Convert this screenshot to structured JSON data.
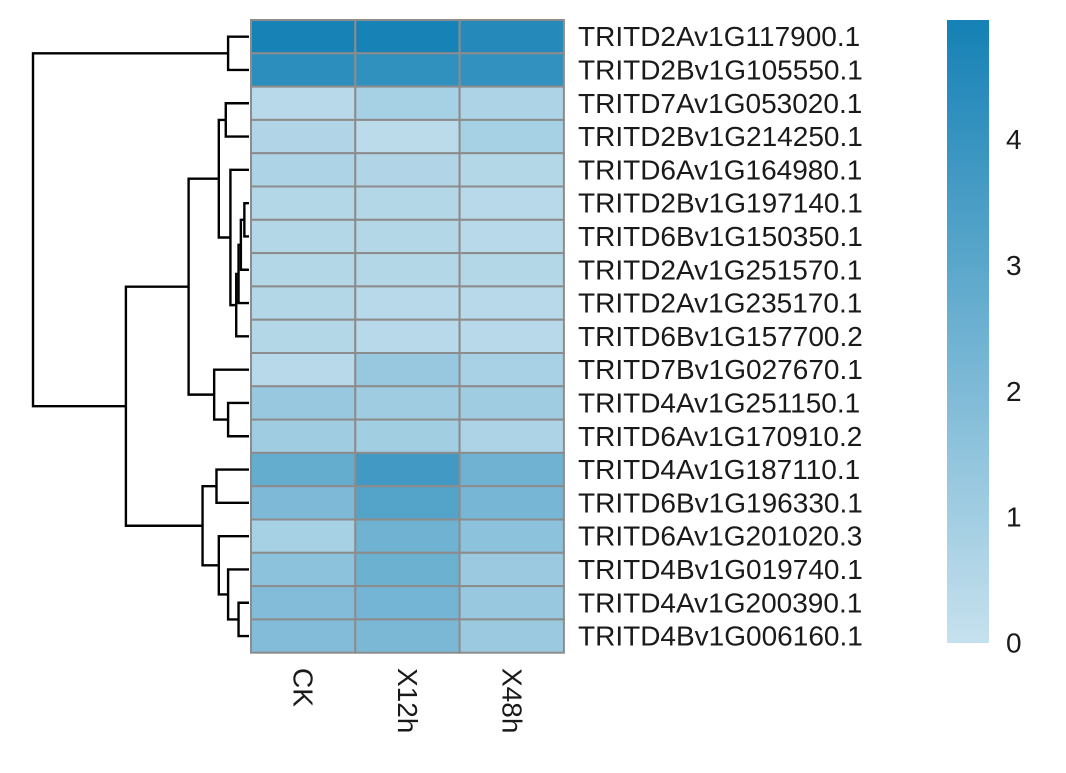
{
  "chart_data": {
    "type": "heatmap",
    "columns": [
      "CK",
      "X12h",
      "X48h"
    ],
    "rows": [
      "TRITD2Av1G117900.1",
      "TRITD2Bv1G105550.1",
      "TRITD7Av1G053020.1",
      "TRITD2Bv1G214250.1",
      "TRITD6Av1G164980.1",
      "TRITD2Bv1G197140.1",
      "TRITD6Bv1G150350.1",
      "TRITD2Av1G251570.1",
      "TRITD2Av1G235170.1",
      "TRITD6Bv1G157700.2",
      "TRITD7Bv1G027670.1",
      "TRITD4Av1G251150.1",
      "TRITD6Av1G170910.2",
      "TRITD4Av1G187110.1",
      "TRITD6Bv1G196330.1",
      "TRITD6Av1G201020.3",
      "TRITD4Bv1G019740.1",
      "TRITD4Av1G200390.1",
      "TRITD4Bv1G006160.1"
    ],
    "values": [
      [
        4.9,
        4.9,
        4.5
      ],
      [
        4.3,
        4.2,
        4.1
      ],
      [
        0.4,
        0.9,
        0.7
      ],
      [
        0.6,
        0.3,
        0.9
      ],
      [
        0.7,
        0.6,
        0.5
      ],
      [
        0.5,
        0.5,
        0.4
      ],
      [
        0.5,
        0.5,
        0.4
      ],
      [
        0.5,
        0.5,
        0.5
      ],
      [
        0.5,
        0.4,
        0.4
      ],
      [
        0.5,
        0.4,
        0.4
      ],
      [
        0.4,
        1.3,
        0.8
      ],
      [
        1.3,
        1.1,
        1.1
      ],
      [
        1.1,
        1.0,
        0.7
      ],
      [
        2.7,
        3.7,
        2.4
      ],
      [
        2.0,
        3.2,
        2.2
      ],
      [
        0.9,
        2.4,
        1.6
      ],
      [
        1.6,
        2.5,
        1.2
      ],
      [
        1.9,
        2.3,
        1.3
      ],
      [
        1.9,
        2.1,
        1.2
      ]
    ],
    "legend_ticks": [
      "0",
      "1",
      "2",
      "3",
      "4"
    ],
    "legend_tick_values": [
      0,
      1,
      2,
      3,
      4
    ],
    "color_range": [
      0,
      4.95
    ],
    "color_low": "#c6e1ee",
    "color_high": "#1581b5",
    "cell_border_color": "#8c8c8c",
    "dendrogram_merge_order": [
      [
        0,
        1,
        0.9
      ],
      [
        5,
        6,
        0.2
      ],
      [
        20,
        7,
        0.35
      ],
      [
        21,
        8,
        0.45
      ],
      [
        22,
        9,
        0.55
      ],
      [
        4,
        23,
        0.8
      ],
      [
        2,
        3,
        1.0
      ],
      [
        25,
        24,
        1.3
      ],
      [
        11,
        12,
        0.9
      ],
      [
        10,
        27,
        1.5
      ],
      [
        26,
        28,
        2.6
      ],
      [
        17,
        18,
        0.45
      ],
      [
        16,
        30,
        0.9
      ],
      [
        15,
        31,
        1.3
      ],
      [
        13,
        14,
        1.4
      ],
      [
        33,
        32,
        2.0
      ],
      [
        29,
        34,
        5.3
      ],
      [
        19,
        35,
        9.3
      ]
    ]
  }
}
